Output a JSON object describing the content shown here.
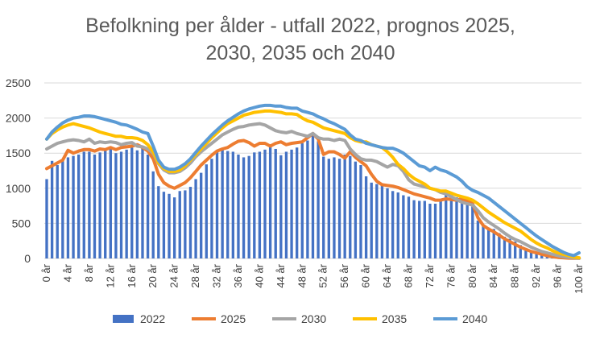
{
  "chart_data": {
    "type": "bar+line",
    "title_line1": "Befolkning per ålder - utfall 2022, prognos 2025,",
    "title_line2": "2030, 2035 och 2040",
    "xlabel": "",
    "ylabel": "",
    "ylim": [
      0,
      2500
    ],
    "yticks": [
      "0",
      "500",
      "1000",
      "1500",
      "2000",
      "2500"
    ],
    "grid": true,
    "legend_position": "bottom",
    "xtick_labels": [
      "0 år",
      "4 år",
      "8 år",
      "12 år",
      "16 år",
      "20 år",
      "24 år",
      "28 år",
      "32 år",
      "36 år",
      "40 år",
      "44 år",
      "48 år",
      "52 år",
      "56 år",
      "60 år",
      "64 år",
      "68 år",
      "72 år",
      "76 år",
      "80 år",
      "84 år",
      "88 år",
      "92 år",
      "96 år",
      "100 år"
    ],
    "x": [
      0,
      1,
      2,
      3,
      4,
      5,
      6,
      7,
      8,
      9,
      10,
      11,
      12,
      13,
      14,
      15,
      16,
      17,
      18,
      19,
      20,
      21,
      22,
      23,
      24,
      25,
      26,
      27,
      28,
      29,
      30,
      31,
      32,
      33,
      34,
      35,
      36,
      37,
      38,
      39,
      40,
      41,
      42,
      43,
      44,
      45,
      46,
      47,
      48,
      49,
      50,
      51,
      52,
      53,
      54,
      55,
      56,
      57,
      58,
      59,
      60,
      61,
      62,
      63,
      64,
      65,
      66,
      67,
      68,
      69,
      70,
      71,
      72,
      73,
      74,
      75,
      76,
      77,
      78,
      79,
      80,
      81,
      82,
      83,
      84,
      85,
      86,
      87,
      88,
      89,
      90,
      91,
      92,
      93,
      94,
      95,
      96,
      97,
      98,
      99,
      100
    ],
    "series": [
      {
        "name": "2022",
        "kind": "bar",
        "color": "#4472c4",
        "values": [
          1130,
          1390,
          1330,
          1400,
          1440,
          1460,
          1480,
          1520,
          1520,
          1480,
          1510,
          1540,
          1560,
          1500,
          1520,
          1550,
          1580,
          1540,
          1580,
          1480,
          1240,
          1030,
          950,
          920,
          870,
          960,
          970,
          1020,
          1130,
          1220,
          1340,
          1420,
          1520,
          1560,
          1530,
          1520,
          1480,
          1440,
          1460,
          1510,
          1520,
          1550,
          1600,
          1560,
          1470,
          1520,
          1550,
          1580,
          1640,
          1680,
          1750,
          1670,
          1450,
          1420,
          1440,
          1420,
          1480,
          1460,
          1380,
          1330,
          1170,
          1080,
          1060,
          1060,
          1000,
          960,
          940,
          900,
          880,
          830,
          820,
          820,
          780,
          780,
          820,
          900,
          900,
          870,
          890,
          820,
          740,
          540,
          460,
          440,
          420,
          360,
          310,
          280,
          240,
          190,
          150,
          120,
          90,
          70,
          60,
          40,
          20,
          10,
          10,
          5,
          5
        ]
      },
      {
        "name": "2025",
        "kind": "line",
        "color": "#ed7d31",
        "values": [
          1280,
          1320,
          1360,
          1400,
          1540,
          1500,
          1530,
          1550,
          1550,
          1530,
          1560,
          1550,
          1580,
          1550,
          1580,
          1590,
          1600,
          1620,
          1580,
          1530,
          1420,
          1200,
          1080,
          1030,
          1000,
          1040,
          1080,
          1150,
          1240,
          1330,
          1400,
          1470,
          1530,
          1560,
          1580,
          1630,
          1670,
          1680,
          1650,
          1600,
          1640,
          1640,
          1600,
          1640,
          1660,
          1620,
          1640,
          1650,
          1660,
          1720,
          1780,
          1700,
          1480,
          1520,
          1520,
          1480,
          1430,
          1520,
          1440,
          1380,
          1320,
          1200,
          1100,
          1050,
          1040,
          1030,
          1010,
          980,
          950,
          920,
          900,
          880,
          860,
          830,
          830,
          850,
          840,
          830,
          850,
          820,
          780,
          580,
          470,
          420,
          380,
          330,
          280,
          240,
          200,
          160,
          130,
          100,
          80,
          60,
          40,
          25,
          15,
          10,
          5,
          3,
          2
        ]
      },
      {
        "name": "2030",
        "kind": "line",
        "color": "#a5a5a5",
        "values": [
          1560,
          1600,
          1640,
          1660,
          1680,
          1690,
          1680,
          1660,
          1700,
          1640,
          1660,
          1650,
          1660,
          1650,
          1620,
          1640,
          1650,
          1600,
          1590,
          1560,
          1500,
          1350,
          1260,
          1220,
          1220,
          1240,
          1290,
          1360,
          1450,
          1520,
          1580,
          1640,
          1700,
          1760,
          1800,
          1840,
          1870,
          1880,
          1900,
          1910,
          1920,
          1900,
          1860,
          1820,
          1800,
          1790,
          1810,
          1780,
          1760,
          1740,
          1780,
          1720,
          1700,
          1700,
          1680,
          1700,
          1680,
          1560,
          1480,
          1420,
          1400,
          1400,
          1380,
          1340,
          1300,
          1340,
          1320,
          1240,
          1120,
          1060,
          1040,
          1020,
          1000,
          980,
          940,
          920,
          880,
          840,
          800,
          780,
          760,
          680,
          580,
          520,
          470,
          420,
          360,
          310,
          270,
          240,
          200,
          160,
          130,
          100,
          80,
          60,
          40,
          25,
          15,
          8,
          4
        ]
      },
      {
        "name": "2035",
        "kind": "line",
        "color": "#ffc000",
        "values": [
          1700,
          1780,
          1830,
          1870,
          1900,
          1920,
          1900,
          1880,
          1860,
          1830,
          1800,
          1780,
          1760,
          1740,
          1740,
          1720,
          1720,
          1710,
          1680,
          1620,
          1520,
          1360,
          1280,
          1240,
          1240,
          1260,
          1320,
          1400,
          1480,
          1560,
          1640,
          1720,
          1790,
          1860,
          1920,
          1960,
          2000,
          2040,
          2060,
          2080,
          2090,
          2100,
          2100,
          2090,
          2080,
          2060,
          2060,
          2050,
          2000,
          1960,
          1940,
          1900,
          1860,
          1840,
          1820,
          1800,
          1780,
          1720,
          1680,
          1660,
          1660,
          1620,
          1600,
          1580,
          1520,
          1440,
          1340,
          1280,
          1200,
          1140,
          1100,
          1060,
          1000,
          980,
          960,
          960,
          930,
          900,
          880,
          860,
          830,
          780,
          720,
          660,
          610,
          560,
          510,
          470,
          430,
          390,
          330,
          270,
          220,
          180,
          150,
          110,
          80,
          60,
          40,
          20,
          10
        ]
      },
      {
        "name": "2040",
        "kind": "line",
        "color": "#5b9bd5",
        "values": [
          1700,
          1800,
          1870,
          1930,
          1970,
          2000,
          2010,
          2030,
          2030,
          2020,
          2000,
          1980,
          1960,
          1940,
          1910,
          1900,
          1870,
          1840,
          1800,
          1780,
          1600,
          1400,
          1300,
          1270,
          1270,
          1300,
          1350,
          1420,
          1510,
          1600,
          1680,
          1760,
          1830,
          1900,
          1960,
          2010,
          2060,
          2100,
          2130,
          2150,
          2170,
          2180,
          2180,
          2170,
          2170,
          2150,
          2140,
          2140,
          2100,
          2080,
          2060,
          2020,
          1990,
          1950,
          1920,
          1880,
          1840,
          1760,
          1700,
          1680,
          1640,
          1620,
          1600,
          1580,
          1570,
          1570,
          1540,
          1500,
          1440,
          1380,
          1320,
          1300,
          1250,
          1300,
          1260,
          1240,
          1200,
          1160,
          1100,
          1020,
          970,
          940,
          900,
          860,
          800,
          740,
          680,
          620,
          560,
          500,
          440,
          380,
          320,
          270,
          220,
          170,
          130,
          90,
          60,
          40,
          80
        ]
      }
    ]
  }
}
